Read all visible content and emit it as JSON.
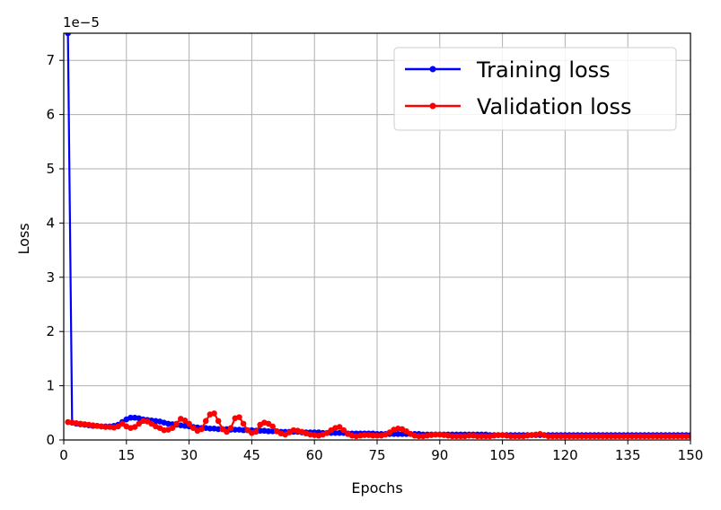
{
  "chart_data": {
    "type": "line",
    "title": "",
    "xlabel": "Epochs",
    "ylabel": "Loss",
    "offset_text": "1e−5",
    "y_scale_factor": 1e-05,
    "xlim": [
      0,
      150
    ],
    "ylim": [
      0,
      7.5
    ],
    "xticks": [
      0,
      15,
      30,
      45,
      60,
      75,
      90,
      105,
      120,
      135,
      150
    ],
    "yticks": [
      0,
      1,
      2,
      3,
      4,
      5,
      6,
      7
    ],
    "grid": true,
    "legend_position": "top-right",
    "series": [
      {
        "name": "Training loss",
        "color": "#0000ff",
        "marker": "circle",
        "x": [
          1,
          2,
          3,
          4,
          5,
          6,
          7,
          8,
          9,
          10,
          11,
          12,
          13,
          14,
          15,
          16,
          17,
          18,
          19,
          20,
          21,
          22,
          23,
          24,
          25,
          26,
          27,
          28,
          29,
          30,
          31,
          32,
          33,
          34,
          35,
          36,
          37,
          38,
          39,
          40,
          41,
          42,
          43,
          44,
          45,
          46,
          47,
          48,
          49,
          50,
          51,
          52,
          53,
          54,
          55,
          56,
          57,
          58,
          59,
          60,
          61,
          62,
          63,
          64,
          65,
          66,
          67,
          68,
          69,
          70,
          71,
          72,
          73,
          74,
          75,
          76,
          77,
          78,
          79,
          80,
          81,
          82,
          83,
          84,
          85,
          86,
          87,
          88,
          89,
          90,
          91,
          92,
          93,
          94,
          95,
          96,
          97,
          98,
          99,
          100,
          101,
          102,
          103,
          104,
          105,
          106,
          107,
          108,
          109,
          110,
          111,
          112,
          113,
          114,
          115,
          116,
          117,
          118,
          119,
          120,
          121,
          122,
          123,
          124,
          125,
          126,
          127,
          128,
          129,
          130,
          131,
          132,
          133,
          134,
          135,
          136,
          137,
          138,
          139,
          140,
          141,
          142,
          143,
          144,
          145,
          146,
          147,
          148,
          149,
          150
        ],
        "values": [
          7.5,
          0.32,
          0.3,
          0.29,
          0.28,
          0.27,
          0.26,
          0.26,
          0.25,
          0.25,
          0.25,
          0.26,
          0.28,
          0.33,
          0.38,
          0.41,
          0.41,
          0.4,
          0.38,
          0.37,
          0.36,
          0.35,
          0.34,
          0.32,
          0.3,
          0.29,
          0.28,
          0.27,
          0.26,
          0.25,
          0.24,
          0.23,
          0.22,
          0.22,
          0.21,
          0.21,
          0.2,
          0.2,
          0.2,
          0.19,
          0.19,
          0.19,
          0.18,
          0.18,
          0.18,
          0.17,
          0.17,
          0.17,
          0.16,
          0.16,
          0.16,
          0.15,
          0.15,
          0.15,
          0.15,
          0.15,
          0.14,
          0.14,
          0.14,
          0.14,
          0.14,
          0.13,
          0.13,
          0.13,
          0.13,
          0.13,
          0.13,
          0.12,
          0.12,
          0.12,
          0.12,
          0.12,
          0.12,
          0.12,
          0.11,
          0.11,
          0.11,
          0.11,
          0.11,
          0.11,
          0.11,
          0.11,
          0.11,
          0.11,
          0.11,
          0.1,
          0.1,
          0.1,
          0.1,
          0.1,
          0.1,
          0.1,
          0.1,
          0.1,
          0.1,
          0.1,
          0.1,
          0.1,
          0.1,
          0.1,
          0.1,
          0.09,
          0.09,
          0.09,
          0.09,
          0.09,
          0.09,
          0.09,
          0.09,
          0.09,
          0.09,
          0.09,
          0.09,
          0.09,
          0.09,
          0.09,
          0.09,
          0.09,
          0.09,
          0.09,
          0.09,
          0.09,
          0.09,
          0.09,
          0.09,
          0.09,
          0.09,
          0.09,
          0.09,
          0.09,
          0.09,
          0.09,
          0.09,
          0.09,
          0.09,
          0.09,
          0.09,
          0.09,
          0.09,
          0.09,
          0.09,
          0.09,
          0.09,
          0.09,
          0.09,
          0.09,
          0.09,
          0.09,
          0.09,
          0.09
        ]
      },
      {
        "name": "Validation loss",
        "color": "#ff0000",
        "marker": "circle",
        "x": [
          1,
          2,
          3,
          4,
          5,
          6,
          7,
          8,
          9,
          10,
          11,
          12,
          13,
          14,
          15,
          16,
          17,
          18,
          19,
          20,
          21,
          22,
          23,
          24,
          25,
          26,
          27,
          28,
          29,
          30,
          31,
          32,
          33,
          34,
          35,
          36,
          37,
          38,
          39,
          40,
          41,
          42,
          43,
          44,
          45,
          46,
          47,
          48,
          49,
          50,
          51,
          52,
          53,
          54,
          55,
          56,
          57,
          58,
          59,
          60,
          61,
          62,
          63,
          64,
          65,
          66,
          67,
          68,
          69,
          70,
          71,
          72,
          73,
          74,
          75,
          76,
          77,
          78,
          79,
          80,
          81,
          82,
          83,
          84,
          85,
          86,
          87,
          88,
          89,
          90,
          91,
          92,
          93,
          94,
          95,
          96,
          97,
          98,
          99,
          100,
          101,
          102,
          103,
          104,
          105,
          106,
          107,
          108,
          109,
          110,
          111,
          112,
          113,
          114,
          115,
          116,
          117,
          118,
          119,
          120,
          121,
          122,
          123,
          124,
          125,
          126,
          127,
          128,
          129,
          130,
          131,
          132,
          133,
          134,
          135,
          136,
          137,
          138,
          139,
          140,
          141,
          142,
          143,
          144,
          145,
          146,
          147,
          148,
          149,
          150
        ],
        "values": [
          0.33,
          0.32,
          0.31,
          0.3,
          0.29,
          0.28,
          0.27,
          0.26,
          0.25,
          0.24,
          0.24,
          0.23,
          0.25,
          0.3,
          0.25,
          0.22,
          0.24,
          0.3,
          0.35,
          0.34,
          0.3,
          0.25,
          0.22,
          0.18,
          0.19,
          0.22,
          0.3,
          0.39,
          0.36,
          0.3,
          0.22,
          0.17,
          0.2,
          0.35,
          0.47,
          0.49,
          0.35,
          0.2,
          0.15,
          0.22,
          0.4,
          0.42,
          0.3,
          0.18,
          0.13,
          0.15,
          0.28,
          0.32,
          0.3,
          0.25,
          0.16,
          0.12,
          0.1,
          0.14,
          0.18,
          0.17,
          0.15,
          0.12,
          0.1,
          0.09,
          0.08,
          0.1,
          0.13,
          0.18,
          0.22,
          0.24,
          0.18,
          0.11,
          0.08,
          0.07,
          0.08,
          0.09,
          0.09,
          0.08,
          0.08,
          0.08,
          0.1,
          0.14,
          0.19,
          0.21,
          0.2,
          0.16,
          0.11,
          0.08,
          0.07,
          0.07,
          0.08,
          0.09,
          0.1,
          0.1,
          0.09,
          0.08,
          0.07,
          0.07,
          0.07,
          0.07,
          0.08,
          0.08,
          0.07,
          0.07,
          0.07,
          0.07,
          0.08,
          0.09,
          0.09,
          0.08,
          0.07,
          0.07,
          0.07,
          0.07,
          0.08,
          0.09,
          0.1,
          0.11,
          0.09,
          0.07,
          0.07,
          0.07,
          0.07,
          0.07,
          0.07,
          0.07,
          0.07,
          0.07,
          0.07,
          0.07,
          0.07,
          0.07,
          0.07,
          0.07,
          0.07,
          0.07,
          0.07,
          0.07,
          0.07,
          0.07,
          0.07,
          0.07,
          0.07,
          0.07,
          0.07,
          0.07,
          0.07,
          0.07,
          0.07,
          0.07,
          0.07,
          0.07,
          0.07,
          0.07
        ]
      }
    ]
  }
}
